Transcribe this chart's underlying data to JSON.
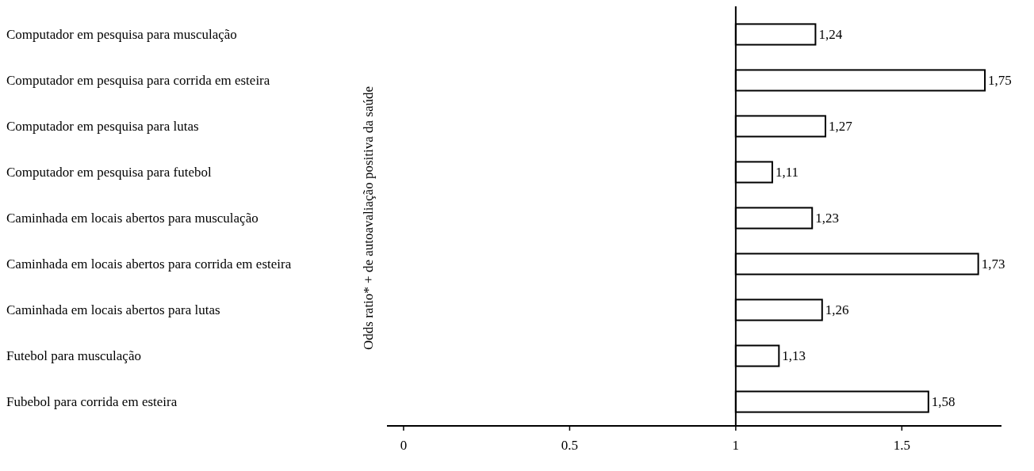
{
  "chart_data": {
    "type": "bar",
    "orientation": "horizontal",
    "ylabel": "Odds ratio* + de autoavaliação positiva da saúde",
    "categories": [
      "Computador em pesquisa para musculação",
      "Computador em pesquisa para corrida em esteira",
      "Computador em pesquisa para lutas",
      "Computador em pesquisa para futebol",
      "Caminhada em locais abertos para musculação",
      "Caminhada em locais abertos para corrida em esteira",
      "Caminhada em locais abertos para lutas",
      "Futebol para musculação",
      "Fubebol para corrida em esteira"
    ],
    "base": [
      1,
      1,
      1,
      1,
      1,
      1,
      1,
      1,
      1
    ],
    "values": [
      0.24,
      0.75,
      0.27,
      0.11,
      0.23,
      0.73,
      0.26,
      0.13,
      0.58
    ],
    "value_labels": [
      "1,24",
      "1,75",
      "1,27",
      "1,11",
      "1,23",
      "1,73",
      "1,26",
      "1,13",
      "1,58"
    ],
    "color": "#ffffff",
    "xlim": [
      -0.05,
      1.8
    ],
    "xticks": [
      0,
      0.5,
      1,
      1.5
    ],
    "ref_lines": [
      {
        "axis": "x",
        "value": 1,
        "color": "#000000"
      }
    ]
  }
}
